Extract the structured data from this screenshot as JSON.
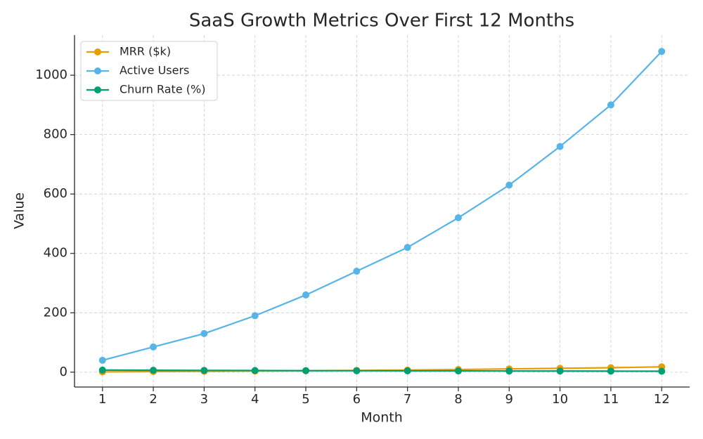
{
  "chart_data": {
    "type": "line",
    "title": "SaaS Growth Metrics Over First 12 Months",
    "x_label": "Month",
    "y_label": "Value",
    "x": [
      1,
      2,
      3,
      4,
      5,
      6,
      7,
      8,
      9,
      10,
      11,
      12
    ],
    "series": [
      {
        "name": "MRR ($k)",
        "color": "#e69f00",
        "values": [
          1,
          2,
          3,
          4,
          5,
          6,
          7,
          9,
          11,
          13,
          15,
          18
        ]
      },
      {
        "name": "Active Users",
        "color": "#56b4e9",
        "values": [
          40,
          85,
          130,
          190,
          260,
          340,
          420,
          520,
          630,
          760,
          900,
          1080
        ]
      },
      {
        "name": "Churn Rate (%)",
        "color": "#009e73",
        "values": [
          7,
          6.5,
          6,
          5.5,
          5,
          4.8,
          4.5,
          4.2,
          4,
          3.8,
          3.5,
          3.2
        ]
      }
    ],
    "xlim": [
      0.45,
      12.55
    ],
    "ylim": [
      -50,
      1135
    ],
    "xticks": [
      1,
      2,
      3,
      4,
      5,
      6,
      7,
      8,
      9,
      10,
      11,
      12
    ],
    "yticks": [
      0,
      200,
      400,
      600,
      800,
      1000
    ],
    "grid": true,
    "legend": "upper left"
  }
}
